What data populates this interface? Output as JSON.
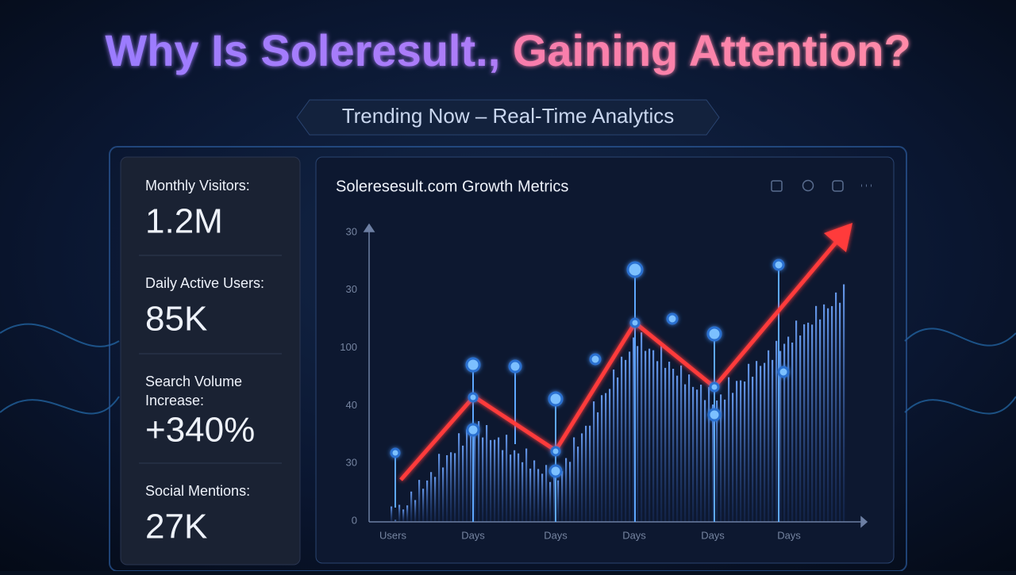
{
  "header": {
    "title_part1": "Why Is Soleresult.,",
    "title_part2": "Gaining Attention?",
    "subtitle": "Trending Now – Real-Time Analytics"
  },
  "stats": [
    {
      "label": "Monthly Visitors:",
      "value": "1.2M"
    },
    {
      "label": "Daily Active Users:",
      "value": "85K"
    },
    {
      "label": "Search Volume",
      "label_line2": "Increase:",
      "value": "+340%"
    },
    {
      "label": "Social Mentions:",
      "value": "27K"
    }
  ],
  "chart": {
    "title": "Soleresesult.com Growth Metrics",
    "y_labels": [
      "30",
      "30",
      "100",
      "40",
      "30",
      "0"
    ],
    "x_labels": [
      "Users",
      "Days",
      "Days",
      "Days",
      "Days",
      "Days"
    ]
  }
}
